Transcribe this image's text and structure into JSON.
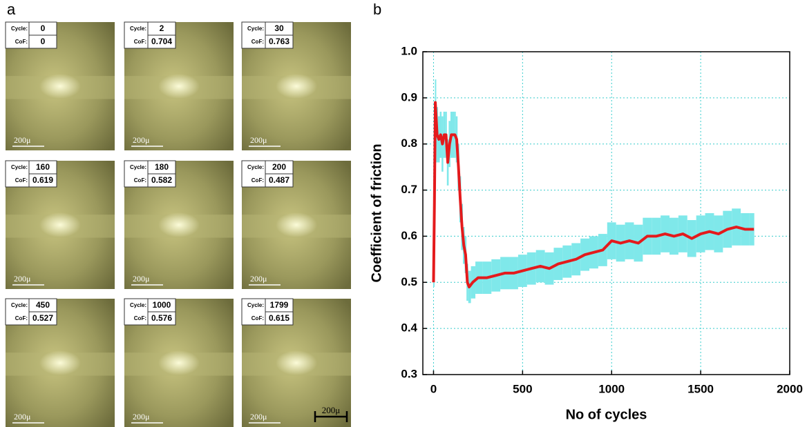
{
  "panel_a": {
    "label": "a",
    "scale_bar": "200μ",
    "images": [
      {
        "cycle_label": "Cycle:",
        "cycle": "0",
        "cof_label": "CoF:",
        "cof": "0",
        "scale": "200μ"
      },
      {
        "cycle_label": "Cycle:",
        "cycle": "2",
        "cof_label": "CoF:",
        "cof": "0.704",
        "scale": "200μ"
      },
      {
        "cycle_label": "Cycle:",
        "cycle": "30",
        "cof_label": "CoF:",
        "cof": "0.763",
        "scale": "200μ"
      },
      {
        "cycle_label": "Cycle:",
        "cycle": "160",
        "cof_label": "CoF:",
        "cof": "0.619",
        "scale": "200μ"
      },
      {
        "cycle_label": "Cycle:",
        "cycle": "180",
        "cof_label": "CoF:",
        "cof": "0.582",
        "scale": "200μ"
      },
      {
        "cycle_label": "Cycle:",
        "cycle": "200",
        "cof_label": "CoF:",
        "cof": "0.487",
        "scale": "200μ"
      },
      {
        "cycle_label": "Cycle:",
        "cycle": "450",
        "cof_label": "CoF:",
        "cof": "0.527",
        "scale": "200μ"
      },
      {
        "cycle_label": "Cycle:",
        "cycle": "1000",
        "cof_label": "CoF:",
        "cof": "0.576",
        "scale": "200μ"
      },
      {
        "cycle_label": "Cycle:",
        "cycle": "1799",
        "cof_label": "CoF:",
        "cof": "0.615",
        "scale": "200μ"
      }
    ]
  },
  "chart_data": {
    "type": "line",
    "panel_label": "b",
    "xlabel": "No of cycles",
    "ylabel": "Coefficient of friction",
    "x": [
      0,
      5,
      10,
      20,
      30,
      40,
      50,
      60,
      70,
      80,
      90,
      100,
      110,
      120,
      130,
      140,
      150,
      160,
      170,
      180,
      190,
      200,
      220,
      250,
      300,
      350,
      400,
      450,
      500,
      550,
      600,
      650,
      700,
      750,
      800,
      850,
      900,
      950,
      1000,
      1050,
      1100,
      1150,
      1200,
      1250,
      1300,
      1350,
      1400,
      1450,
      1500,
      1550,
      1600,
      1650,
      1700,
      1750,
      1799
    ],
    "values": [
      0.5,
      0.67,
      0.89,
      0.82,
      0.81,
      0.82,
      0.8,
      0.82,
      0.82,
      0.76,
      0.8,
      0.82,
      0.82,
      0.82,
      0.81,
      0.75,
      0.68,
      0.62,
      0.58,
      0.56,
      0.5,
      0.49,
      0.5,
      0.51,
      0.51,
      0.515,
      0.52,
      0.52,
      0.525,
      0.53,
      0.535,
      0.53,
      0.54,
      0.545,
      0.55,
      0.56,
      0.565,
      0.57,
      0.59,
      0.585,
      0.59,
      0.585,
      0.6,
      0.6,
      0.605,
      0.6,
      0.605,
      0.595,
      0.605,
      0.61,
      0.605,
      0.615,
      0.62,
      0.615,
      0.615
    ],
    "errors": [
      0.01,
      0.05,
      0.05,
      0.06,
      0.05,
      0.05,
      0.06,
      0.05,
      0.05,
      0.05,
      0.05,
      0.05,
      0.05,
      0.05,
      0.05,
      0.05,
      0.05,
      0.05,
      0.04,
      0.04,
      0.04,
      0.035,
      0.035,
      0.035,
      0.035,
      0.035,
      0.035,
      0.035,
      0.035,
      0.035,
      0.035,
      0.035,
      0.035,
      0.035,
      0.035,
      0.035,
      0.035,
      0.035,
      0.04,
      0.04,
      0.04,
      0.04,
      0.04,
      0.04,
      0.04,
      0.04,
      0.04,
      0.04,
      0.04,
      0.04,
      0.04,
      0.04,
      0.04,
      0.035,
      0.035
    ],
    "color": "#e41a1c",
    "error_color": "#7fe8ea",
    "xlim": [
      -60,
      2000
    ],
    "xticks": [
      0,
      500,
      1000,
      1500,
      2000
    ],
    "ylim": [
      0.3,
      1.0
    ],
    "yticks": [
      0.3,
      0.4,
      0.5,
      0.6,
      0.7,
      0.8,
      0.9,
      {
        "value": 1,
        "label": "1.0"
      }
    ],
    "grid": true,
    "grid_color": "#33cccc"
  }
}
